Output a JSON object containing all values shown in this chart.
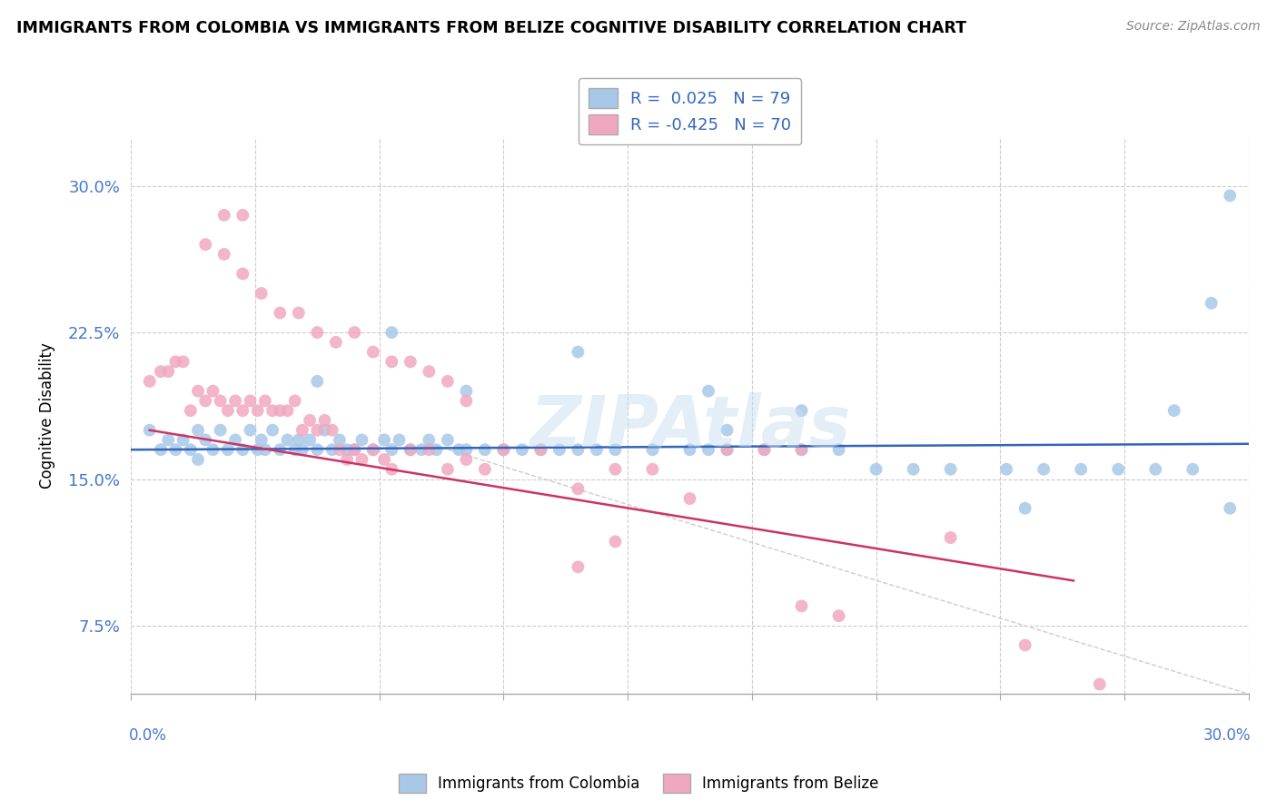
{
  "title": "IMMIGRANTS FROM COLOMBIA VS IMMIGRANTS FROM BELIZE COGNITIVE DISABILITY CORRELATION CHART",
  "source": "Source: ZipAtlas.com",
  "ylabel": "Cognitive Disability",
  "yticks": [
    0.075,
    0.15,
    0.225,
    0.3
  ],
  "ytick_labels": [
    "7.5%",
    "15.0%",
    "22.5%",
    "30.0%"
  ],
  "xlim": [
    0.0,
    0.3
  ],
  "ylim": [
    0.04,
    0.325
  ],
  "R_colombia": 0.025,
  "N_colombia": 79,
  "R_belize": -0.425,
  "N_belize": 70,
  "color_colombia": "#a8c8e8",
  "color_belize": "#f0a8c0",
  "trendline_colombia_color": "#3366bb",
  "trendline_belize_color": "#cc3366",
  "legend_label_colombia": "Immigrants from Colombia",
  "legend_label_belize": "Immigrants from Belize",
  "watermark": "ZIPAtlas",
  "col_trendline": [
    0.0,
    0.3,
    0.165,
    0.168
  ],
  "bel_trendline": [
    0.005,
    0.253,
    0.175,
    0.098
  ],
  "diag_line": [
    0.08,
    0.3,
    0.168,
    0.04
  ],
  "colombia_x": [
    0.005,
    0.008,
    0.01,
    0.012,
    0.014,
    0.016,
    0.018,
    0.018,
    0.02,
    0.022,
    0.024,
    0.026,
    0.028,
    0.03,
    0.032,
    0.034,
    0.035,
    0.036,
    0.038,
    0.04,
    0.042,
    0.044,
    0.045,
    0.046,
    0.048,
    0.05,
    0.052,
    0.054,
    0.056,
    0.058,
    0.06,
    0.062,
    0.065,
    0.068,
    0.07,
    0.072,
    0.075,
    0.078,
    0.08,
    0.082,
    0.085,
    0.088,
    0.09,
    0.095,
    0.1,
    0.105,
    0.11,
    0.115,
    0.12,
    0.125,
    0.13,
    0.14,
    0.15,
    0.155,
    0.16,
    0.17,
    0.18,
    0.19,
    0.2,
    0.21,
    0.22,
    0.235,
    0.245,
    0.255,
    0.265,
    0.275,
    0.285,
    0.05,
    0.07,
    0.09,
    0.12,
    0.155,
    0.18,
    0.24,
    0.16,
    0.28,
    0.295,
    0.295,
    0.29
  ],
  "colombia_y": [
    0.175,
    0.165,
    0.17,
    0.165,
    0.17,
    0.165,
    0.175,
    0.16,
    0.17,
    0.165,
    0.175,
    0.165,
    0.17,
    0.165,
    0.175,
    0.165,
    0.17,
    0.165,
    0.175,
    0.165,
    0.17,
    0.165,
    0.17,
    0.165,
    0.17,
    0.165,
    0.175,
    0.165,
    0.17,
    0.165,
    0.165,
    0.17,
    0.165,
    0.17,
    0.165,
    0.17,
    0.165,
    0.165,
    0.17,
    0.165,
    0.17,
    0.165,
    0.165,
    0.165,
    0.165,
    0.165,
    0.165,
    0.165,
    0.165,
    0.165,
    0.165,
    0.165,
    0.165,
    0.165,
    0.165,
    0.165,
    0.165,
    0.165,
    0.155,
    0.155,
    0.155,
    0.155,
    0.155,
    0.155,
    0.155,
    0.155,
    0.155,
    0.2,
    0.225,
    0.195,
    0.215,
    0.195,
    0.185,
    0.135,
    0.175,
    0.185,
    0.295,
    0.135,
    0.24
  ],
  "belize_x": [
    0.005,
    0.008,
    0.01,
    0.012,
    0.014,
    0.016,
    0.018,
    0.02,
    0.022,
    0.024,
    0.026,
    0.028,
    0.03,
    0.032,
    0.034,
    0.036,
    0.038,
    0.04,
    0.042,
    0.044,
    0.046,
    0.048,
    0.05,
    0.052,
    0.054,
    0.056,
    0.058,
    0.06,
    0.062,
    0.065,
    0.068,
    0.07,
    0.075,
    0.08,
    0.085,
    0.09,
    0.095,
    0.1,
    0.11,
    0.12,
    0.13,
    0.14,
    0.15,
    0.16,
    0.17,
    0.18,
    0.02,
    0.025,
    0.03,
    0.035,
    0.04,
    0.045,
    0.05,
    0.055,
    0.06,
    0.065,
    0.07,
    0.075,
    0.08,
    0.085,
    0.09,
    0.12,
    0.13,
    0.18,
    0.19,
    0.22,
    0.24,
    0.26,
    0.025,
    0.03
  ],
  "belize_y": [
    0.2,
    0.205,
    0.205,
    0.21,
    0.21,
    0.185,
    0.195,
    0.19,
    0.195,
    0.19,
    0.185,
    0.19,
    0.185,
    0.19,
    0.185,
    0.19,
    0.185,
    0.185,
    0.185,
    0.19,
    0.175,
    0.18,
    0.175,
    0.18,
    0.175,
    0.165,
    0.16,
    0.165,
    0.16,
    0.165,
    0.16,
    0.155,
    0.165,
    0.165,
    0.155,
    0.16,
    0.155,
    0.165,
    0.165,
    0.145,
    0.155,
    0.155,
    0.14,
    0.165,
    0.165,
    0.165,
    0.27,
    0.265,
    0.255,
    0.245,
    0.235,
    0.235,
    0.225,
    0.22,
    0.225,
    0.215,
    0.21,
    0.21,
    0.205,
    0.2,
    0.19,
    0.105,
    0.118,
    0.085,
    0.08,
    0.12,
    0.065,
    0.045,
    0.285,
    0.285
  ]
}
